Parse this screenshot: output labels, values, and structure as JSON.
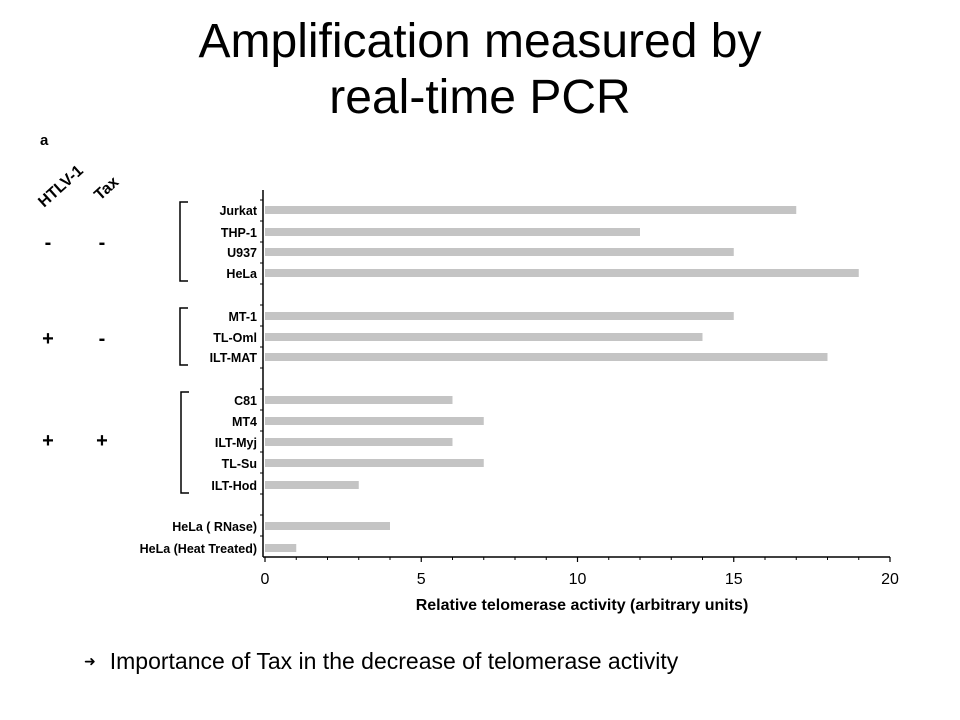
{
  "slide": {
    "title_line1": "Amplification measured by",
    "title_line2": "real-time PCR",
    "bullet_icon": "right-arrow-icon",
    "bullet_text": "Importance of Tax in the decrease of telomerase activity"
  },
  "chart_data": {
    "type": "bar",
    "orientation": "horizontal",
    "panel_label": "a",
    "factor_headers": [
      "HTLV-1",
      "Tax"
    ],
    "categories": [
      "Jurkat",
      "THP-1",
      "U937",
      "HeLa",
      "MT-1",
      "TL-Oml",
      "ILT-MAT",
      "C81",
      "MT4",
      "ILT-Myj",
      "TL-Su",
      "ILT-Hod",
      "HeLa ( RNase)",
      "HeLa (Heat Treated)"
    ],
    "values": [
      17,
      12,
      15,
      19,
      15,
      14,
      18,
      6,
      7,
      6,
      7,
      3,
      4,
      1
    ],
    "groups": [
      {
        "htlv1": "-",
        "tax": "-",
        "members": [
          "Jurkat",
          "THP-1",
          "U937",
          "HeLa"
        ]
      },
      {
        "htlv1": "+",
        "tax": "-",
        "members": [
          "MT-1",
          "TL-Oml",
          "ILT-MAT"
        ]
      },
      {
        "htlv1": "+",
        "tax": "+",
        "members": [
          "C81",
          "MT4",
          "ILT-Myj",
          "TL-Su",
          "ILT-Hod"
        ]
      }
    ],
    "xticks": [
      "0",
      "5",
      "10",
      "15",
      "20"
    ],
    "xlim": [
      0,
      20
    ],
    "xlabel": "Relative telomerase activity (arbitrary units)",
    "ylabel": "",
    "bar_color": "#c4c4c4",
    "grid": false
  }
}
